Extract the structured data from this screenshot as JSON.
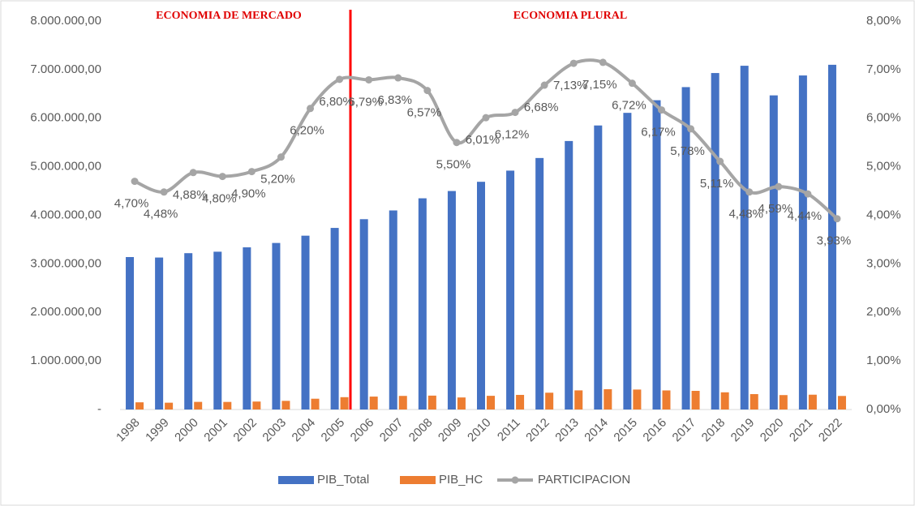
{
  "chart_data": {
    "type": "bar_line",
    "annotations": [
      "ECONOMIA DE MERCADO",
      "ECONOMIA PLURAL"
    ],
    "categories": [
      "1998",
      "1999",
      "2000",
      "2001",
      "2002",
      "2003",
      "2004",
      "2005",
      "2006",
      "2007",
      "2008",
      "2009",
      "2010",
      "2011",
      "2012",
      "2013",
      "2014",
      "2015",
      "2016",
      "2017",
      "2018",
      "2019",
      "2020",
      "2021",
      "2022"
    ],
    "series": [
      {
        "name": "PIB_Total",
        "type": "bar",
        "color": "#4472c4",
        "values": [
          3140000,
          3130000,
          3220000,
          3250000,
          3340000,
          3430000,
          3580000,
          3740000,
          3920000,
          4100000,
          4350000,
          4500000,
          4690000,
          4920000,
          5180000,
          5530000,
          5850000,
          6110000,
          6370000,
          6640000,
          6930000,
          7080000,
          6470000,
          6880000,
          7100000
        ]
      },
      {
        "name": "PIB_HC",
        "type": "bar",
        "color": "#ed7d31",
        "values": [
          148000,
          140000,
          157000,
          156000,
          164000,
          178000,
          222000,
          254000,
          266000,
          280000,
          286000,
          248000,
          282000,
          301000,
          346000,
          394000,
          418000,
          411000,
          393000,
          384000,
          354000,
          317000,
          297000,
          305000,
          279000
        ]
      },
      {
        "name": "PARTICIPACION",
        "type": "line",
        "axis": "y2",
        "color": "#a5a5a5",
        "values": [
          4.7,
          4.48,
          4.88,
          4.8,
          4.9,
          5.2,
          6.2,
          6.8,
          6.79,
          6.83,
          6.57,
          5.5,
          6.01,
          6.12,
          6.68,
          7.13,
          7.15,
          6.72,
          6.17,
          5.78,
          5.11,
          4.48,
          4.59,
          4.44,
          3.93
        ],
        "value_labels": [
          "4,70%",
          "4,48%",
          "4,88%",
          "4,80%",
          "4,90%",
          "5,20%",
          "6,20%",
          "6,80%",
          "6,79%",
          "6,83%",
          "6,57%",
          "5,50%",
          "6,01%",
          "6,12%",
          "6,68%",
          "7,13%",
          "7,15%",
          "6,72%",
          "6,17%",
          "5,78%",
          "5,11%",
          "4,48%",
          "4,59%",
          "4,44%",
          "3,93%"
        ]
      }
    ],
    "ylim": [
      0,
      8000000
    ],
    "yticks": [
      {
        "value": 0,
        "label": "-"
      },
      {
        "value": 1000000,
        "label": "1.000.000,00"
      },
      {
        "value": 2000000,
        "label": "2.000.000,00"
      },
      {
        "value": 3000000,
        "label": "3.000.000,00"
      },
      {
        "value": 4000000,
        "label": "4.000.000,00"
      },
      {
        "value": 5000000,
        "label": "5.000.000,00"
      },
      {
        "value": 6000000,
        "label": "6.000.000,00"
      },
      {
        "value": 7000000,
        "label": "7.000.000,00"
      },
      {
        "value": 8000000,
        "label": "8.000.000,00"
      }
    ],
    "y2lim": [
      0,
      8
    ],
    "y2ticks": [
      {
        "value": 0,
        "label": "0,00%"
      },
      {
        "value": 1,
        "label": "1,00%"
      },
      {
        "value": 2,
        "label": "2,00%"
      },
      {
        "value": 3,
        "label": "3,00%"
      },
      {
        "value": 4,
        "label": "4,00%"
      },
      {
        "value": 5,
        "label": "5,00%"
      },
      {
        "value": 6,
        "label": "6,00%"
      },
      {
        "value": 7,
        "label": "7,00%"
      },
      {
        "value": 8,
        "label": "8,00%"
      }
    ],
    "legend": "bottom"
  }
}
